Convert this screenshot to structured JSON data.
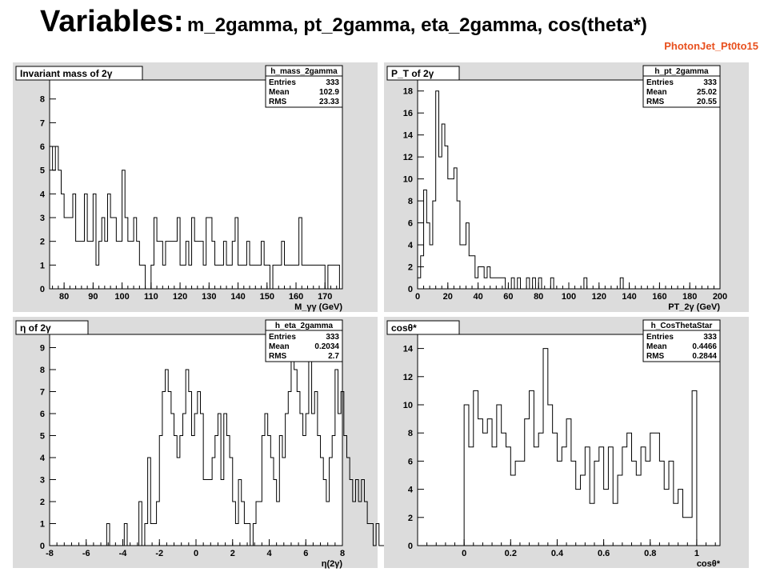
{
  "slide": {
    "title_main": "Variables:",
    "title_rest": "m_2gamma, pt_2gamma, eta_2gamma, cos(theta*)",
    "sample": "PhotonJet_Pt0to15"
  },
  "chart_data": [
    {
      "type": "bar",
      "title": "Invariant mass of 2γ",
      "xlabel": "M_γγ (GeV)",
      "xlim": [
        75,
        176
      ],
      "ylim": [
        0,
        8.8
      ],
      "xticks": [
        80,
        90,
        100,
        110,
        120,
        130,
        140,
        150,
        160,
        170
      ],
      "yticks": [
        0,
        1,
        2,
        3,
        4,
        5,
        6,
        7,
        8
      ],
      "bin_edges_start": 75,
      "bin_width": 1,
      "values": [
        6,
        5,
        6,
        5,
        4,
        3,
        3,
        3,
        4,
        2,
        2,
        2,
        4,
        2,
        2,
        4,
        1,
        2,
        3,
        2,
        4,
        3,
        3,
        2,
        2,
        5,
        3,
        2,
        2,
        3,
        2,
        1,
        1,
        0,
        0,
        1,
        3,
        2,
        2,
        1,
        2,
        2,
        2,
        2,
        3,
        1,
        1,
        2,
        1,
        3,
        2,
        2,
        2,
        1,
        3,
        3,
        2,
        1,
        1,
        1,
        2,
        1,
        1,
        2,
        3,
        1,
        1,
        1,
        2,
        1,
        1,
        1,
        1,
        2,
        1,
        1,
        0,
        1,
        1,
        1,
        2,
        1,
        1,
        1,
        1,
        1,
        3,
        1,
        1,
        1,
        1,
        1,
        1,
        1,
        1,
        0,
        1,
        1,
        1,
        1,
        0
      ],
      "stats": {
        "name": "h_mass_2gamma",
        "entries": "333",
        "mean": "102.9",
        "rms": "23.33"
      }
    },
    {
      "type": "bar",
      "title": "P_T of 2γ",
      "xlabel": "PT_2γ (GeV)",
      "xlim": [
        0,
        200
      ],
      "ylim": [
        0,
        19
      ],
      "xticks": [
        0,
        20,
        40,
        60,
        80,
        100,
        120,
        140,
        160,
        180,
        200
      ],
      "yticks": [
        0,
        2,
        4,
        6,
        8,
        10,
        12,
        14,
        16,
        18
      ],
      "bin_edges_start": 0,
      "bin_width": 2,
      "values": [
        1,
        3,
        9,
        6,
        4,
        8,
        18,
        12,
        15,
        13,
        10,
        10,
        11,
        8,
        4,
        4,
        6,
        3,
        3,
        1,
        2,
        2,
        1,
        2,
        1,
        1,
        1,
        1,
        1,
        0,
        0,
        1,
        0,
        1,
        0,
        0,
        1,
        0,
        1,
        0,
        1,
        0,
        0,
        0,
        1,
        0,
        0,
        0,
        0,
        0,
        0,
        0,
        0,
        0,
        0,
        1,
        0,
        0,
        0,
        0,
        0,
        0,
        0,
        0,
        0,
        0,
        0,
        1,
        0,
        0
      ],
      "stats": {
        "name": "h_pt_2gamma",
        "entries": "333",
        "mean": "25.02",
        "rms": "20.55"
      }
    },
    {
      "type": "bar",
      "title": "η of 2γ",
      "xlabel": "η(2γ)",
      "xlim": [
        -8,
        8
      ],
      "ylim": [
        0,
        9.6
      ],
      "xticks": [
        -8,
        -6,
        -4,
        -2,
        0,
        2,
        4,
        6,
        8
      ],
      "yticks": [
        0,
        1,
        2,
        3,
        4,
        5,
        6,
        7,
        8,
        9
      ],
      "bin_edges_start": -6,
      "bin_width": 0.16,
      "values": [
        0,
        0,
        0,
        0,
        0,
        0,
        0,
        1,
        0,
        0,
        0,
        0,
        0,
        1,
        0,
        0,
        0,
        0,
        2,
        0,
        1,
        4,
        1,
        1,
        2,
        5,
        7,
        8,
        7,
        6,
        5,
        4,
        5,
        6,
        8,
        7,
        5,
        6,
        7,
        6,
        3,
        3,
        3,
        4,
        5,
        6,
        3,
        6,
        5,
        4,
        2,
        1,
        3,
        2,
        1,
        1,
        0,
        1,
        2,
        2,
        5,
        6,
        5,
        4,
        3,
        2,
        5,
        4,
        6,
        7,
        9,
        8,
        7,
        6,
        5,
        6,
        9,
        6,
        7,
        5,
        4,
        3,
        2,
        4,
        5,
        8,
        6,
        7,
        5,
        4,
        3,
        2,
        3,
        2,
        3,
        2,
        1,
        1,
        0,
        1,
        0,
        0,
        0
      ],
      "stats": {
        "name": "h_eta_2gamma",
        "entries": "333",
        "mean": "0.2034",
        "rms": "2.7"
      }
    },
    {
      "type": "bar",
      "title": "cosθ*",
      "xlabel": "cosθ*",
      "xlim": [
        -0.2,
        1.1
      ],
      "ylim": [
        0,
        15
      ],
      "xticks": [
        0,
        0.2,
        0.4,
        0.6,
        0.8,
        1
      ],
      "xtick_labels": [
        "0",
        "0.2",
        "0.4",
        "0.6",
        "0.8",
        "1"
      ],
      "yticks": [
        0,
        2,
        4,
        6,
        8,
        10,
        12,
        14
      ],
      "bin_edges_start": 0,
      "bin_width": 0.02,
      "values": [
        10,
        7,
        11,
        9,
        8,
        9,
        7,
        10,
        8,
        7,
        5,
        6,
        6,
        9,
        11,
        7,
        8,
        14,
        10,
        8,
        6,
        7,
        9,
        6,
        4,
        5,
        7,
        3,
        6,
        7,
        4,
        7,
        3,
        5,
        7,
        8,
        6,
        5,
        7,
        6,
        8,
        8,
        6,
        4,
        6,
        3,
        4,
        2,
        2,
        11
      ],
      "stats": {
        "name": "h_CosThetaStar",
        "entries": "333",
        "mean": "0.4466",
        "rms": "0.2844"
      }
    }
  ]
}
